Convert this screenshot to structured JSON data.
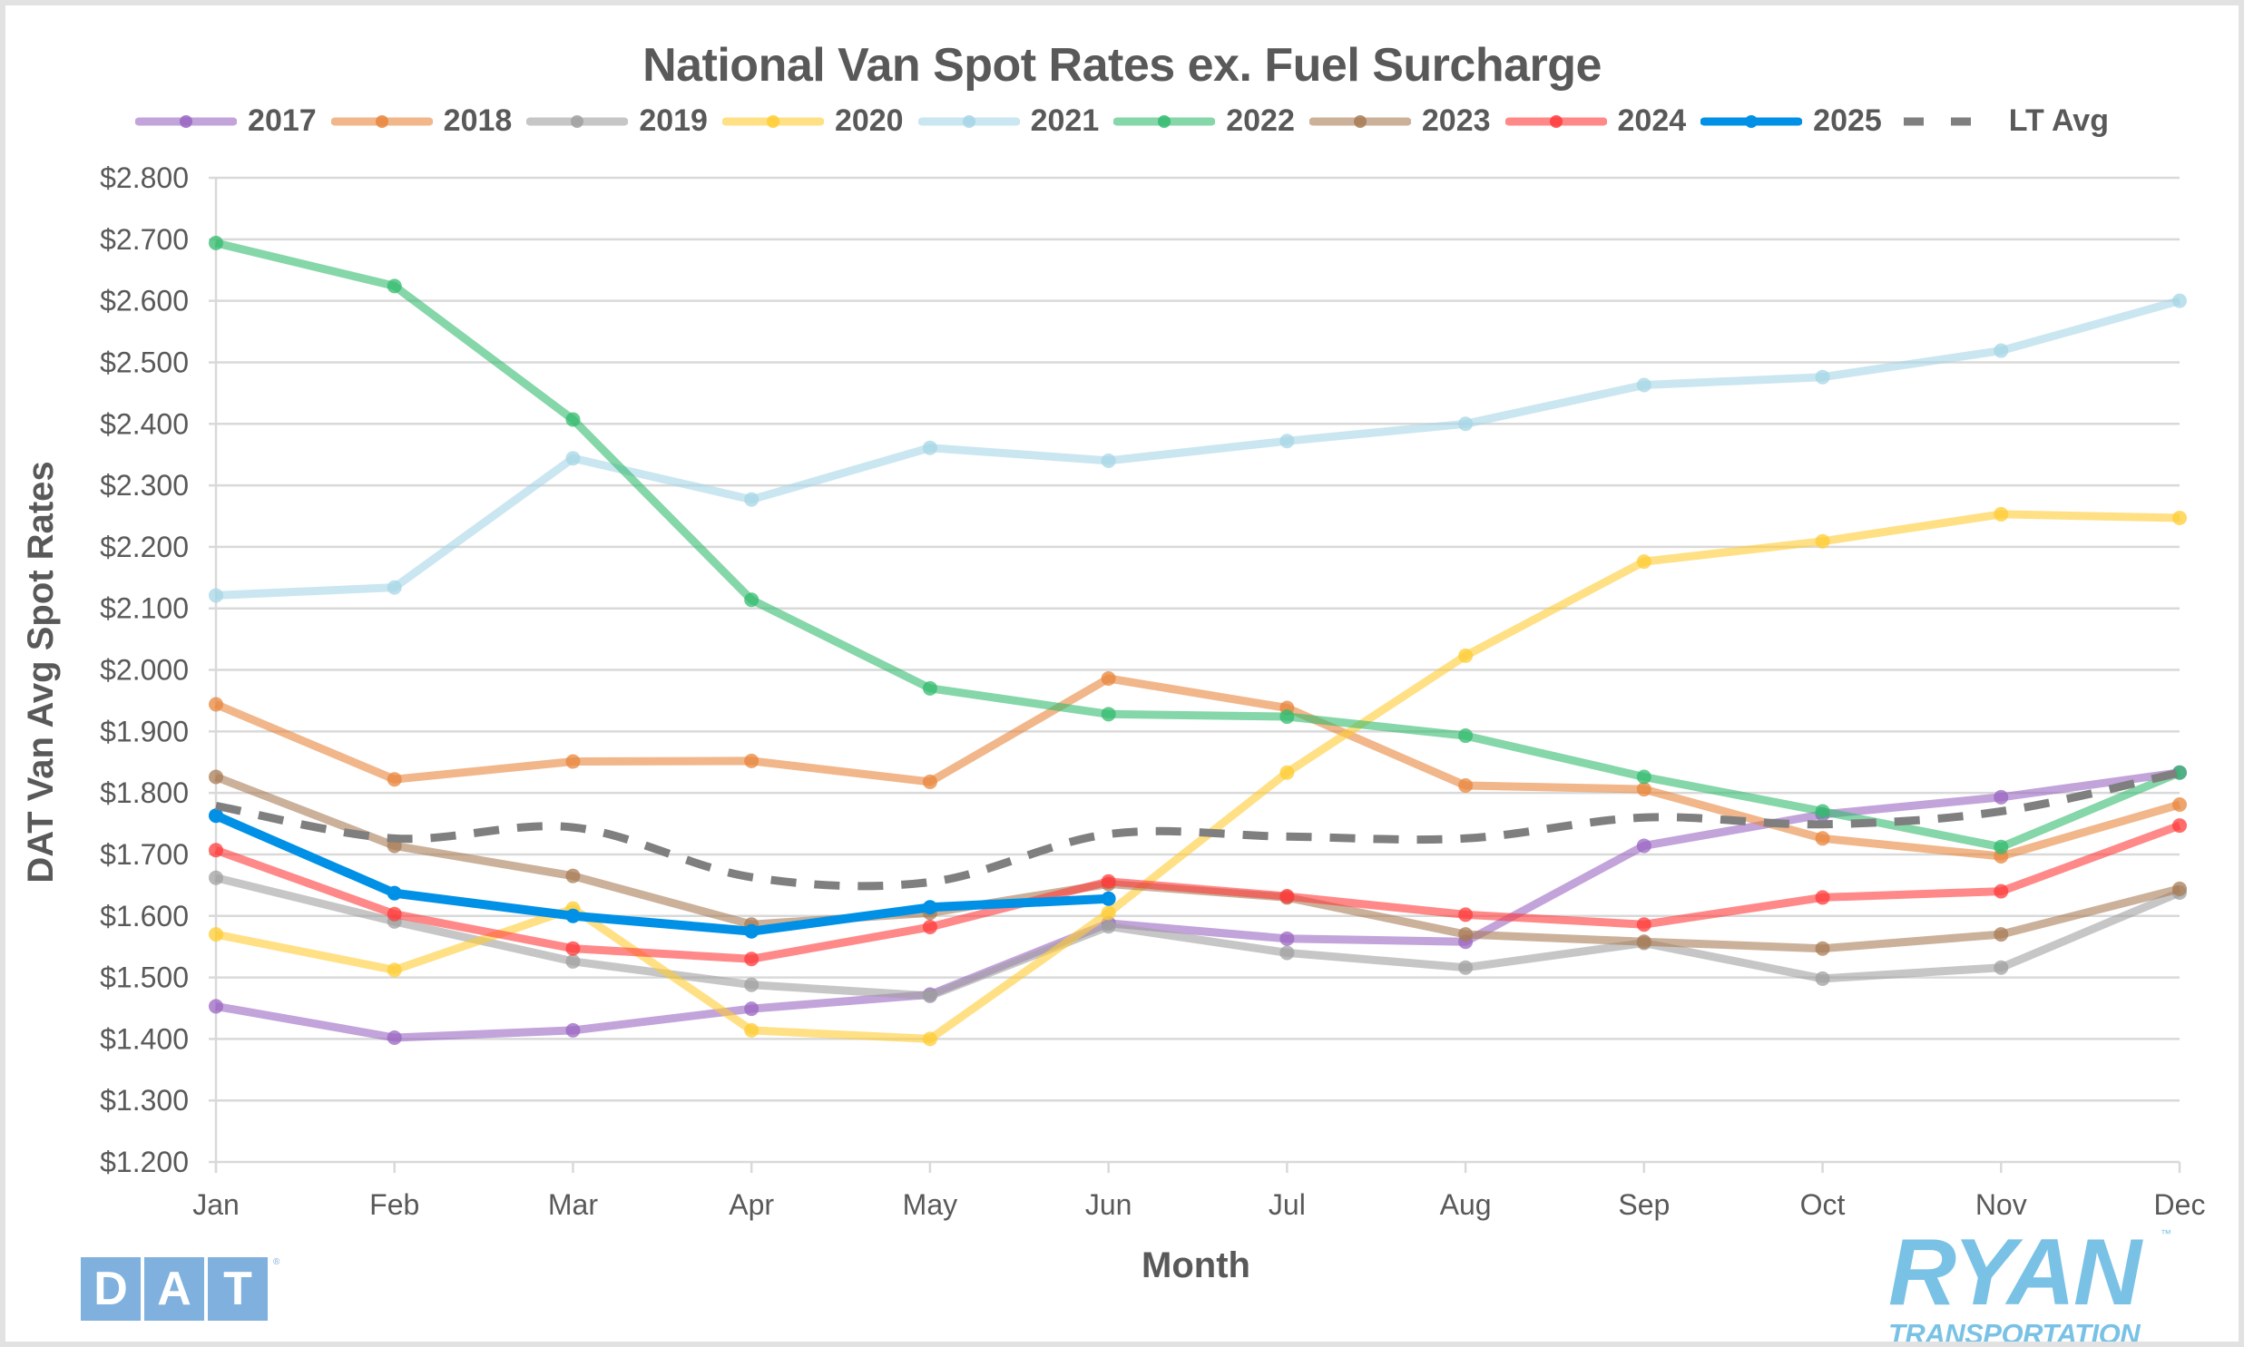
{
  "chart_data": {
    "type": "line",
    "title": "National Van Spot Rates ex. Fuel Surcharge",
    "xlabel": "Month",
    "ylabel": "DAT Van Avg Spot Rates",
    "ylim": [
      1.2,
      2.8
    ],
    "ytick_step": 0.1,
    "ytick_labels": [
      "$1.200",
      "$1.300",
      "$1.400",
      "$1.500",
      "$1.600",
      "$1.700",
      "$1.800",
      "$1.900",
      "$2.000",
      "$2.100",
      "$2.200",
      "$2.300",
      "$2.400",
      "$2.500",
      "$2.600",
      "$2.700",
      "$2.800"
    ],
    "categories": [
      "Jan",
      "Feb",
      "Mar",
      "Apr",
      "May",
      "Jun",
      "Jul",
      "Aug",
      "Sep",
      "Oct",
      "Nov",
      "Dec"
    ],
    "grid": "horizontal",
    "legend_position": "top",
    "series": [
      {
        "name": "2017",
        "color": "#9966c2",
        "style": "solid-marker",
        "values": [
          1.453,
          1.402,
          1.414,
          1.449,
          1.472,
          1.588,
          1.563,
          1.558,
          1.714,
          1.765,
          1.793,
          1.833
        ]
      },
      {
        "name": "2018",
        "color": "#e8863c",
        "style": "solid-marker",
        "values": [
          1.944,
          1.822,
          1.851,
          1.852,
          1.818,
          1.986,
          1.938,
          1.812,
          1.806,
          1.726,
          1.697,
          1.781
        ]
      },
      {
        "name": "2019",
        "color": "#a0a0a0",
        "style": "solid-marker",
        "values": [
          1.662,
          1.591,
          1.526,
          1.488,
          1.47,
          1.583,
          1.54,
          1.516,
          1.556,
          1.498,
          1.516,
          1.638
        ]
      },
      {
        "name": "2020",
        "color": "#ffcc33",
        "style": "solid-marker",
        "values": [
          1.57,
          1.512,
          1.612,
          1.414,
          1.4,
          1.605,
          1.833,
          2.023,
          2.176,
          2.209,
          2.253,
          2.247
        ]
      },
      {
        "name": "2021",
        "color": "#a6d5e6",
        "style": "solid-marker",
        "values": [
          2.121,
          2.134,
          2.344,
          2.277,
          2.361,
          2.34,
          2.372,
          2.4,
          2.463,
          2.476,
          2.519,
          2.6
        ]
      },
      {
        "name": "2022",
        "color": "#33bb6e",
        "style": "solid-marker",
        "values": [
          2.694,
          2.624,
          2.407,
          2.114,
          1.97,
          1.928,
          1.924,
          1.893,
          1.826,
          1.77,
          1.712,
          1.833
        ]
      },
      {
        "name": "2023",
        "color": "#a87c56",
        "style": "solid-marker",
        "values": [
          1.826,
          1.714,
          1.665,
          1.586,
          1.605,
          1.652,
          1.63,
          1.57,
          1.558,
          1.547,
          1.57,
          1.644
        ]
      },
      {
        "name": "2024",
        "color": "#ff3b3b",
        "style": "solid-marker",
        "values": [
          1.707,
          1.603,
          1.547,
          1.53,
          1.582,
          1.656,
          1.632,
          1.602,
          1.586,
          1.63,
          1.64,
          1.747
        ]
      },
      {
        "name": "2025",
        "color": "#0090e6",
        "style": "solid-marker-bold",
        "values": [
          1.763,
          1.637,
          1.6,
          1.575,
          1.614,
          1.628
        ]
      },
      {
        "name": "LT Avg",
        "color": "#7f7f7f",
        "style": "dashed",
        "values": [
          1.779,
          1.726,
          1.744,
          1.663,
          1.655,
          1.733,
          1.729,
          1.726,
          1.76,
          1.749,
          1.77,
          1.833
        ]
      }
    ]
  },
  "logos": {
    "dat": [
      "D",
      "A",
      "T"
    ],
    "dat_reg": "®",
    "ryan_word": "RYAN",
    "ryan_tm": "™",
    "ryan_sub": "TRANSPORTATION"
  }
}
